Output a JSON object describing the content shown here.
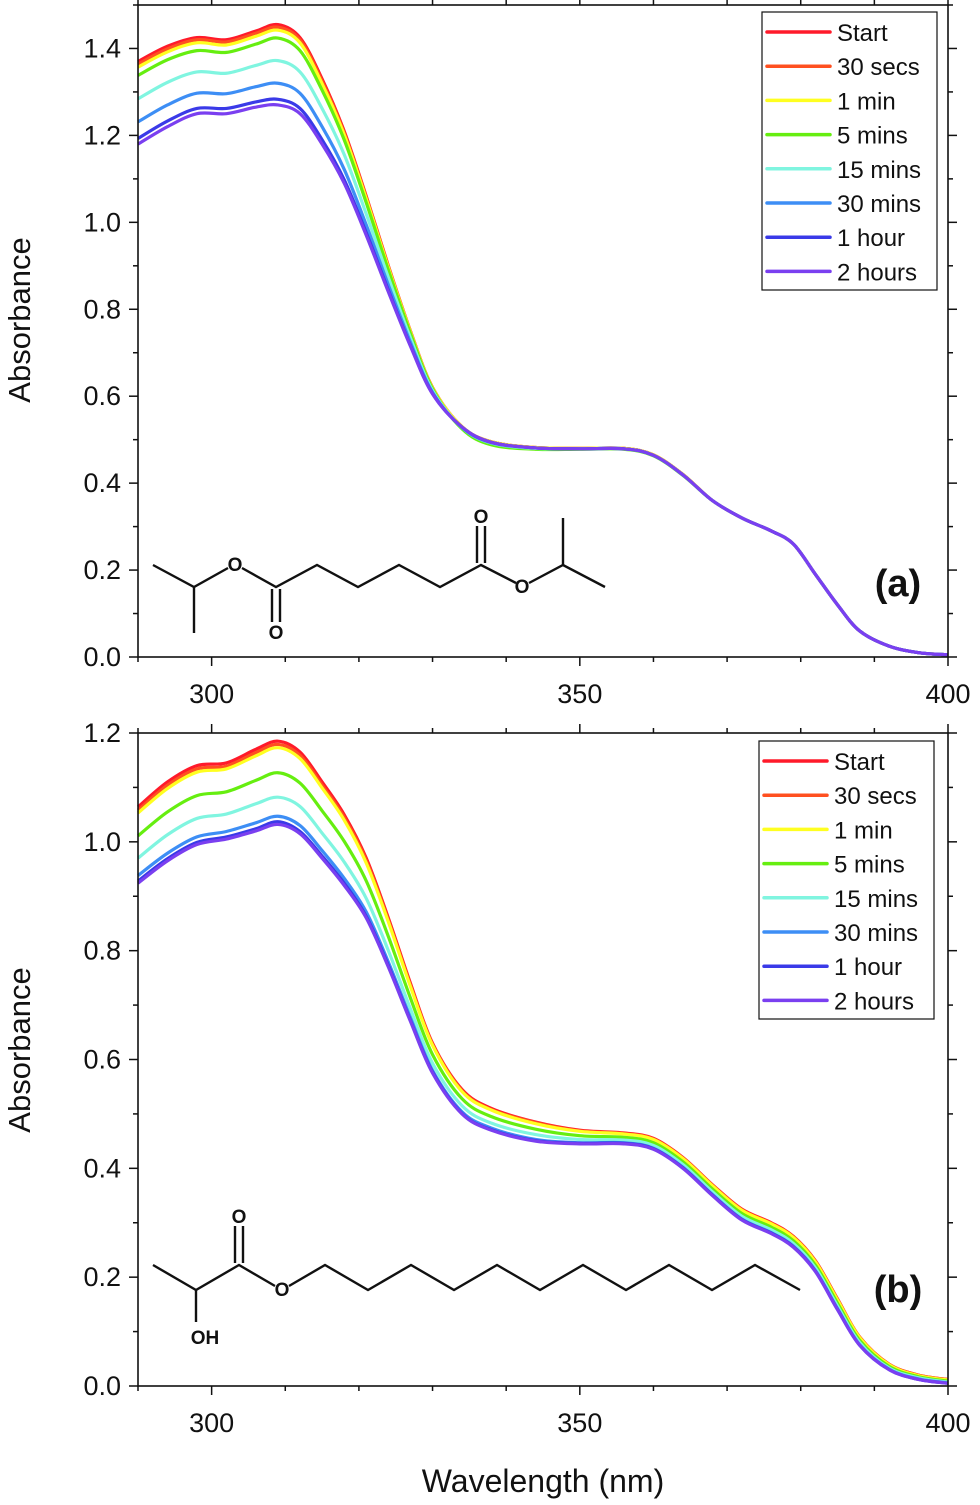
{
  "chart_data": [
    {
      "type": "line",
      "panel_label": "(a)",
      "xlabel": "",
      "ylabel": "Absorbance",
      "xlim": [
        290,
        400
      ],
      "ylim": [
        0,
        1.5
      ],
      "xticks": [
        300,
        350,
        400
      ],
      "yticks": [
        0.0,
        0.2,
        0.4,
        0.6,
        0.8,
        1.0,
        1.2,
        1.4
      ],
      "legend_position": "top-right",
      "structure_labels": [
        "O",
        "O",
        "O",
        "O"
      ],
      "x": [
        290,
        294,
        298,
        302,
        306,
        309,
        312,
        315,
        318,
        321,
        324,
        327,
        330,
        334,
        338,
        344,
        350,
        356,
        360,
        364,
        368,
        372,
        376,
        379,
        382,
        385,
        388,
        392,
        396,
        400
      ],
      "series": [
        {
          "name": "Start",
          "color": "#ff1a2a",
          "values": [
            1.37,
            1.405,
            1.425,
            1.42,
            1.44,
            1.455,
            1.425,
            1.33,
            1.21,
            1.06,
            0.9,
            0.75,
            0.62,
            0.53,
            0.495,
            0.482,
            0.48,
            0.48,
            0.465,
            0.42,
            0.36,
            0.32,
            0.29,
            0.26,
            0.19,
            0.12,
            0.06,
            0.025,
            0.01,
            0.005
          ]
        },
        {
          "name": "30 secs",
          "color": "#ff5020",
          "values": [
            1.364,
            1.399,
            1.42,
            1.415,
            1.435,
            1.449,
            1.42,
            1.325,
            1.206,
            1.057,
            0.898,
            0.749,
            0.62,
            0.53,
            0.495,
            0.482,
            0.48,
            0.48,
            0.465,
            0.42,
            0.36,
            0.32,
            0.29,
            0.26,
            0.19,
            0.12,
            0.06,
            0.025,
            0.01,
            0.005
          ]
        },
        {
          "name": "1 min",
          "color": "#ffff20",
          "values": [
            1.357,
            1.392,
            1.413,
            1.408,
            1.428,
            1.442,
            1.413,
            1.319,
            1.202,
            1.054,
            0.896,
            0.748,
            0.619,
            0.53,
            0.495,
            0.482,
            0.48,
            0.48,
            0.465,
            0.42,
            0.36,
            0.32,
            0.29,
            0.26,
            0.19,
            0.12,
            0.06,
            0.025,
            0.01,
            0.005
          ]
        },
        {
          "name": "5 mins",
          "color": "#66ee10",
          "values": [
            1.338,
            1.374,
            1.395,
            1.391,
            1.41,
            1.424,
            1.395,
            1.304,
            1.19,
            1.045,
            0.89,
            0.744,
            0.617,
            0.525,
            0.488,
            0.478,
            0.478,
            0.478,
            0.463,
            0.418,
            0.36,
            0.32,
            0.29,
            0.26,
            0.19,
            0.12,
            0.06,
            0.025,
            0.01,
            0.005
          ]
        },
        {
          "name": "15 mins",
          "color": "#80f5e0",
          "values": [
            1.284,
            1.322,
            1.346,
            1.343,
            1.361,
            1.372,
            1.346,
            1.262,
            1.156,
            1.019,
            0.873,
            0.734,
            0.613,
            0.528,
            0.492,
            0.48,
            0.479,
            0.479,
            0.464,
            0.419,
            0.36,
            0.32,
            0.29,
            0.26,
            0.19,
            0.12,
            0.06,
            0.025,
            0.01,
            0.005
          ]
        },
        {
          "name": "30 mins",
          "color": "#3d8ef5",
          "values": [
            1.231,
            1.27,
            1.297,
            1.296,
            1.312,
            1.32,
            1.297,
            1.22,
            1.122,
            0.994,
            0.856,
            0.724,
            0.609,
            0.528,
            0.493,
            0.481,
            0.479,
            0.479,
            0.464,
            0.419,
            0.36,
            0.32,
            0.29,
            0.26,
            0.19,
            0.12,
            0.06,
            0.025,
            0.01,
            0.005
          ]
        },
        {
          "name": "1 hour",
          "color": "#3a3ae8",
          "values": [
            1.193,
            1.233,
            1.262,
            1.262,
            1.277,
            1.283,
            1.262,
            1.19,
            1.098,
            0.976,
            0.844,
            0.717,
            0.606,
            0.529,
            0.494,
            0.481,
            0.479,
            0.479,
            0.464,
            0.419,
            0.36,
            0.32,
            0.29,
            0.26,
            0.19,
            0.12,
            0.06,
            0.025,
            0.01,
            0.005
          ]
        },
        {
          "name": "2 hours",
          "color": "#7a3ff0",
          "values": [
            1.18,
            1.22,
            1.25,
            1.25,
            1.265,
            1.27,
            1.25,
            1.18,
            1.09,
            0.97,
            0.84,
            0.715,
            0.605,
            0.529,
            0.494,
            0.481,
            0.479,
            0.479,
            0.464,
            0.419,
            0.36,
            0.32,
            0.29,
            0.26,
            0.19,
            0.12,
            0.06,
            0.025,
            0.01,
            0.005
          ]
        }
      ]
    },
    {
      "type": "line",
      "panel_label": "(b)",
      "xlabel": "Wavelength (nm)",
      "ylabel": "Absorbance",
      "xlim": [
        290,
        400
      ],
      "ylim": [
        0,
        1.2
      ],
      "xticks": [
        300,
        350,
        400
      ],
      "yticks": [
        0.0,
        0.2,
        0.4,
        0.6,
        0.8,
        1.0,
        1.2
      ],
      "legend_position": "top-right",
      "structure_labels": [
        "O",
        "O",
        "OH"
      ],
      "x": [
        290,
        294,
        298,
        302,
        306,
        309,
        312,
        315,
        318,
        321,
        324,
        327,
        330,
        334,
        338,
        344,
        350,
        356,
        360,
        364,
        368,
        372,
        376,
        379,
        382,
        385,
        388,
        392,
        396,
        400
      ],
      "series": [
        {
          "name": "Start",
          "color": "#ff1a2a",
          "values": [
            1.064,
            1.11,
            1.14,
            1.145,
            1.17,
            1.185,
            1.165,
            1.11,
            1.05,
            0.97,
            0.86,
            0.74,
            0.63,
            0.545,
            0.51,
            0.485,
            0.47,
            0.465,
            0.455,
            0.42,
            0.37,
            0.325,
            0.3,
            0.275,
            0.23,
            0.16,
            0.09,
            0.04,
            0.02,
            0.012
          ]
        },
        {
          "name": "30 secs",
          "color": "#ff5020",
          "values": [
            1.058,
            1.104,
            1.134,
            1.139,
            1.164,
            1.179,
            1.159,
            1.104,
            1.045,
            0.966,
            0.856,
            0.737,
            0.628,
            0.543,
            0.508,
            0.484,
            0.469,
            0.464,
            0.454,
            0.419,
            0.369,
            0.324,
            0.299,
            0.274,
            0.229,
            0.159,
            0.09,
            0.04,
            0.02,
            0.012
          ]
        },
        {
          "name": "1 min",
          "color": "#ffff20",
          "values": [
            1.053,
            1.098,
            1.128,
            1.134,
            1.158,
            1.173,
            1.153,
            1.099,
            1.04,
            0.961,
            0.853,
            0.734,
            0.626,
            0.541,
            0.507,
            0.482,
            0.468,
            0.463,
            0.453,
            0.418,
            0.368,
            0.323,
            0.298,
            0.273,
            0.228,
            0.158,
            0.089,
            0.039,
            0.019,
            0.011
          ]
        },
        {
          "name": "5 mins",
          "color": "#66ee10",
          "values": [
            1.011,
            1.055,
            1.085,
            1.092,
            1.113,
            1.127,
            1.108,
            1.057,
            1.001,
            0.928,
            0.826,
            0.713,
            0.609,
            0.528,
            0.495,
            0.472,
            0.46,
            0.457,
            0.447,
            0.412,
            0.362,
            0.317,
            0.292,
            0.267,
            0.222,
            0.152,
            0.084,
            0.036,
            0.017,
            0.009
          ]
        },
        {
          "name": "15 mins",
          "color": "#80f5e0",
          "values": [
            0.97,
            1.013,
            1.043,
            1.051,
            1.07,
            1.082,
            1.065,
            1.016,
            0.963,
            0.896,
            0.8,
            0.693,
            0.593,
            0.515,
            0.483,
            0.462,
            0.453,
            0.452,
            0.442,
            0.407,
            0.357,
            0.312,
            0.287,
            0.262,
            0.217,
            0.147,
            0.08,
            0.033,
            0.015,
            0.007
          ]
        },
        {
          "name": "30 mins",
          "color": "#3d8ef5",
          "values": [
            0.938,
            0.979,
            1.009,
            1.019,
            1.035,
            1.047,
            1.03,
            0.984,
            0.933,
            0.871,
            0.779,
            0.677,
            0.58,
            0.504,
            0.474,
            0.453,
            0.447,
            0.447,
            0.437,
            0.402,
            0.352,
            0.307,
            0.282,
            0.257,
            0.212,
            0.142,
            0.076,
            0.031,
            0.013,
            0.006
          ]
        },
        {
          "name": "1 hour",
          "color": "#3a3ae8",
          "values": [
            0.928,
            0.969,
            0.999,
            1.009,
            1.024,
            1.037,
            1.019,
            0.974,
            0.924,
            0.863,
            0.773,
            0.672,
            0.577,
            0.501,
            0.471,
            0.451,
            0.446,
            0.446,
            0.436,
            0.401,
            0.351,
            0.306,
            0.281,
            0.256,
            0.211,
            0.141,
            0.075,
            0.03,
            0.012,
            0.005
          ]
        },
        {
          "name": "2 hours",
          "color": "#7a3ff0",
          "values": [
            0.924,
            0.965,
            0.995,
            1.005,
            1.02,
            1.032,
            1.015,
            0.97,
            0.92,
            0.86,
            0.77,
            0.67,
            0.575,
            0.5,
            0.47,
            0.45,
            0.445,
            0.445,
            0.435,
            0.4,
            0.35,
            0.305,
            0.28,
            0.255,
            0.21,
            0.14,
            0.075,
            0.03,
            0.012,
            0.005
          ]
        }
      ]
    }
  ]
}
